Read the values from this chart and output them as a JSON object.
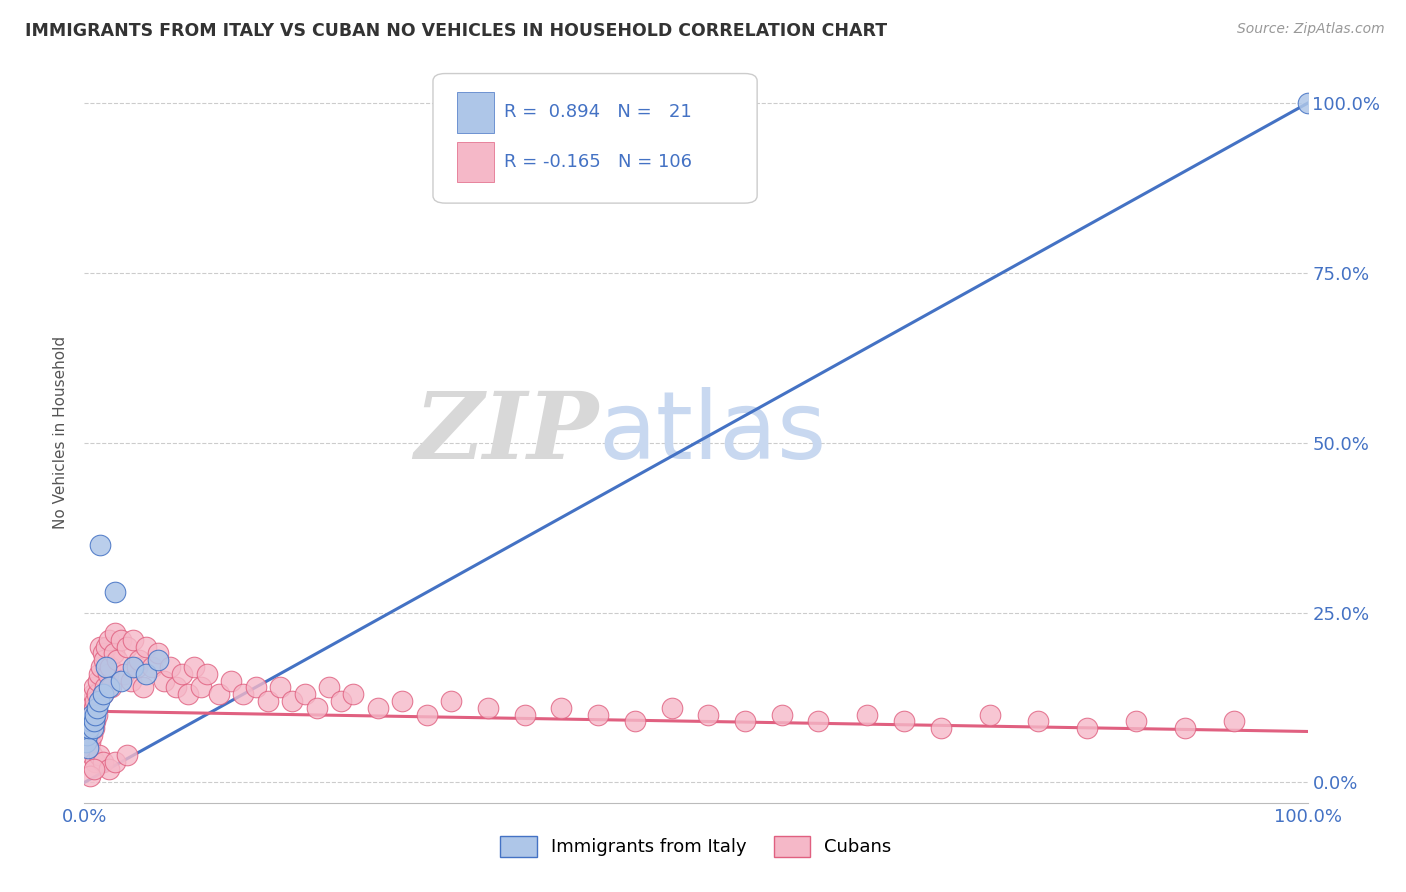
{
  "title": "IMMIGRANTS FROM ITALY VS CUBAN NO VEHICLES IN HOUSEHOLD CORRELATION CHART",
  "source": "Source: ZipAtlas.com",
  "ylabel": "No Vehicles in Household",
  "xlim": [
    0.0,
    1.0
  ],
  "ylim": [
    -0.03,
    1.06
  ],
  "italy_color": "#aec6e8",
  "italy_edge_color": "#4472c4",
  "cuba_color": "#f5b8c8",
  "cuba_edge_color": "#e06080",
  "italy_line_color": "#4472c4",
  "cuba_line_color": "#e06080",
  "background_color": "#ffffff",
  "grid_color": "#cccccc",
  "watermark_ZIP": "ZIP",
  "watermark_atlas": "atlas",
  "watermark_ZIP_color": "#d8d8d8",
  "watermark_atlas_color": "#c8d8f0",
  "title_color": "#333333",
  "source_color": "#999999",
  "axis_label_color": "#555555",
  "tick_color": "#4472c4",
  "italy_line_x": [
    0.0,
    1.0
  ],
  "italy_line_y": [
    0.0,
    1.0
  ],
  "cuba_line_x": [
    0.0,
    1.0
  ],
  "cuba_line_y": [
    0.105,
    0.075
  ],
  "italy_scatter_x": [
    0.001,
    0.002,
    0.003,
    0.004,
    0.005,
    0.006,
    0.007,
    0.008,
    0.009,
    0.01,
    0.012,
    0.013,
    0.015,
    0.018,
    0.02,
    0.025,
    0.03,
    0.04,
    0.05,
    0.06,
    1.0
  ],
  "italy_scatter_y": [
    0.06,
    0.07,
    0.05,
    0.08,
    0.09,
    0.1,
    0.08,
    0.09,
    0.1,
    0.11,
    0.12,
    0.35,
    0.13,
    0.17,
    0.14,
    0.28,
    0.15,
    0.17,
    0.16,
    0.18,
    1.0
  ],
  "cuba_scatter_x": [
    0.001,
    0.001,
    0.002,
    0.002,
    0.002,
    0.003,
    0.003,
    0.003,
    0.004,
    0.004,
    0.004,
    0.005,
    0.005,
    0.005,
    0.006,
    0.006,
    0.006,
    0.007,
    0.007,
    0.008,
    0.008,
    0.008,
    0.009,
    0.009,
    0.01,
    0.01,
    0.011,
    0.012,
    0.013,
    0.014,
    0.015,
    0.015,
    0.016,
    0.017,
    0.018,
    0.019,
    0.02,
    0.021,
    0.022,
    0.024,
    0.025,
    0.027,
    0.03,
    0.032,
    0.035,
    0.038,
    0.04,
    0.043,
    0.045,
    0.048,
    0.05,
    0.055,
    0.06,
    0.065,
    0.07,
    0.075,
    0.08,
    0.085,
    0.09,
    0.095,
    0.1,
    0.11,
    0.12,
    0.13,
    0.14,
    0.15,
    0.16,
    0.17,
    0.18,
    0.19,
    0.2,
    0.21,
    0.22,
    0.24,
    0.26,
    0.28,
    0.3,
    0.33,
    0.36,
    0.39,
    0.42,
    0.45,
    0.48,
    0.51,
    0.54,
    0.57,
    0.6,
    0.64,
    0.67,
    0.7,
    0.74,
    0.78,
    0.82,
    0.86,
    0.9,
    0.94,
    0.003,
    0.006,
    0.009,
    0.012,
    0.015,
    0.02,
    0.025,
    0.035,
    0.005,
    0.008
  ],
  "cuba_scatter_y": [
    0.09,
    0.07,
    0.1,
    0.08,
    0.06,
    0.11,
    0.08,
    0.06,
    0.1,
    0.07,
    0.05,
    0.11,
    0.08,
    0.06,
    0.12,
    0.09,
    0.07,
    0.13,
    0.1,
    0.14,
    0.11,
    0.08,
    0.12,
    0.09,
    0.13,
    0.1,
    0.15,
    0.16,
    0.2,
    0.17,
    0.19,
    0.13,
    0.18,
    0.14,
    0.2,
    0.16,
    0.21,
    0.17,
    0.14,
    0.19,
    0.22,
    0.18,
    0.21,
    0.16,
    0.2,
    0.15,
    0.21,
    0.17,
    0.18,
    0.14,
    0.2,
    0.17,
    0.19,
    0.15,
    0.17,
    0.14,
    0.16,
    0.13,
    0.17,
    0.14,
    0.16,
    0.13,
    0.15,
    0.13,
    0.14,
    0.12,
    0.14,
    0.12,
    0.13,
    0.11,
    0.14,
    0.12,
    0.13,
    0.11,
    0.12,
    0.1,
    0.12,
    0.11,
    0.1,
    0.11,
    0.1,
    0.09,
    0.11,
    0.1,
    0.09,
    0.1,
    0.09,
    0.1,
    0.09,
    0.08,
    0.1,
    0.09,
    0.08,
    0.09,
    0.08,
    0.09,
    0.05,
    0.04,
    0.03,
    0.04,
    0.03,
    0.02,
    0.03,
    0.04,
    0.01,
    0.02
  ]
}
